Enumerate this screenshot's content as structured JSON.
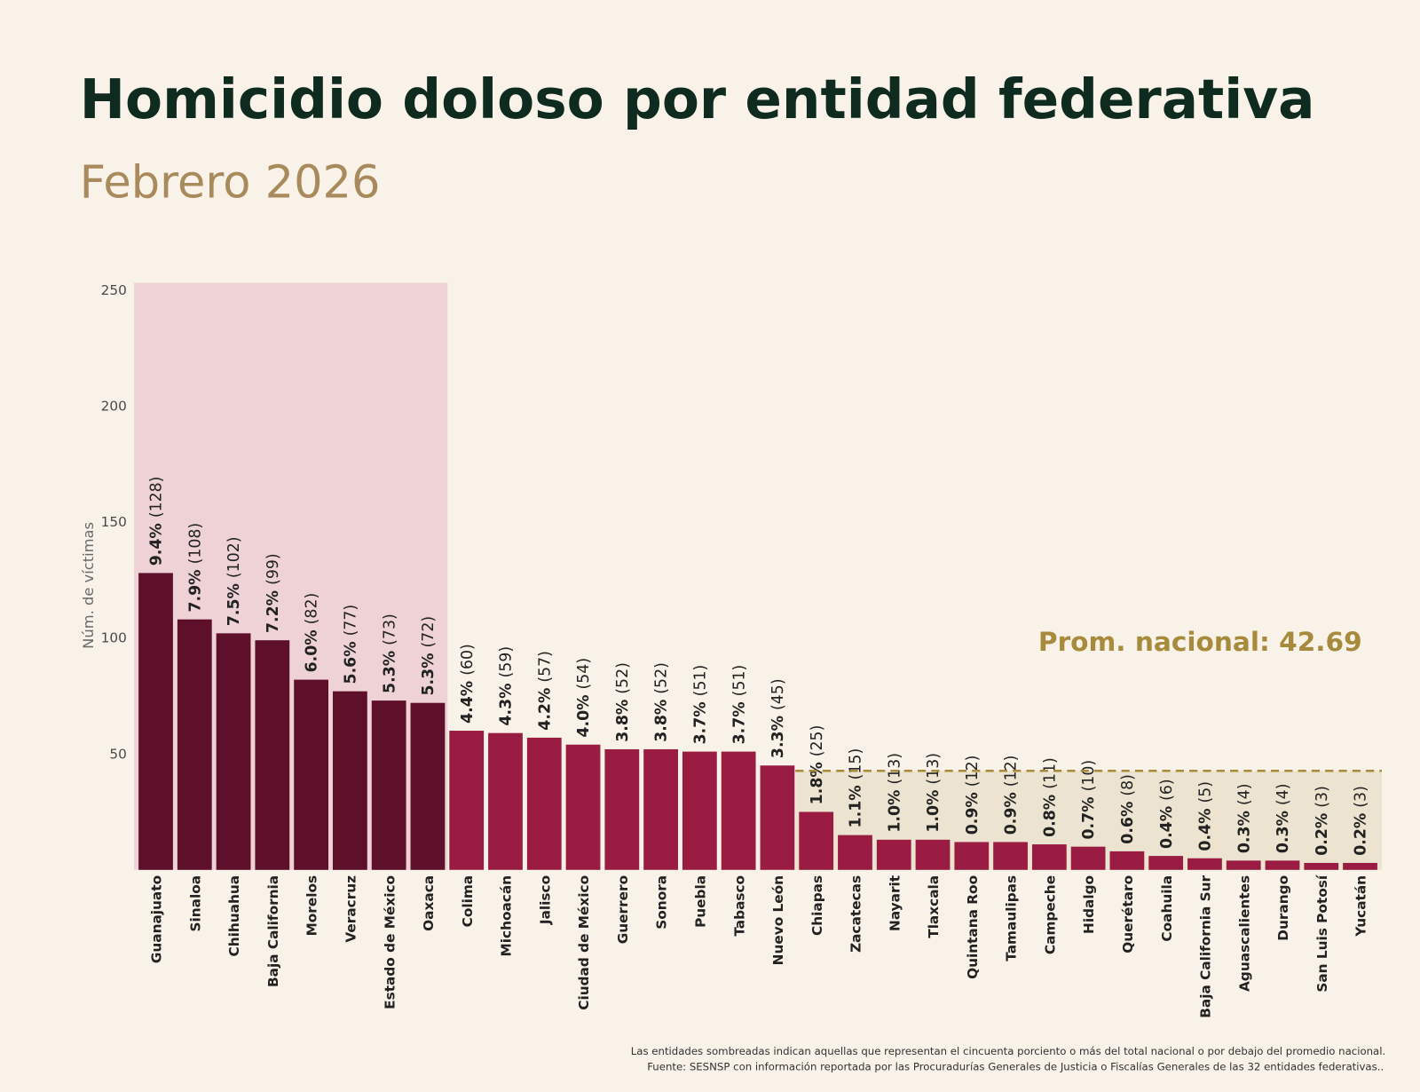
{
  "chart_data": {
    "type": "bar",
    "title": "Homicidio doloso por entidad federativa",
    "subtitle": "Febrero 2026",
    "ylabel": "Núm. de víctimas",
    "xlabel": "",
    "ylim": [
      0,
      250
    ],
    "yticks": [
      50,
      100,
      150,
      200,
      250
    ],
    "grid": false,
    "categories": [
      "Guanajuato",
      "Sinaloa",
      "Chihuahua",
      "Baja California",
      "Morelos",
      "Veracruz",
      "Estado de México",
      "Oaxaca",
      "Colima",
      "Michoacán",
      "Jalisco",
      "Ciudad de México",
      "Guerrero",
      "Sonora",
      "Puebla",
      "Tabasco",
      "Nuevo León",
      "Chiapas",
      "Zacatecas",
      "Nayarit",
      "Tlaxcala",
      "Quintana Roo",
      "Tamaulipas",
      "Campeche",
      "Hidalgo",
      "Querétaro",
      "Coahuila",
      "Baja California Sur",
      "Aguascalientes",
      "Durango",
      "San Luis Potosí",
      "Yucatán"
    ],
    "values": [
      128,
      108,
      102,
      99,
      82,
      77,
      73,
      72,
      60,
      59,
      57,
      54,
      52,
      52,
      51,
      51,
      45,
      25,
      15,
      13,
      13,
      12,
      12,
      11,
      10,
      8,
      6,
      5,
      4,
      4,
      3,
      3
    ],
    "percent_labels": [
      "9.4%",
      "7.9%",
      "7.5%",
      "7.2%",
      "6.0%",
      "5.6%",
      "5.3%",
      "5.3%",
      "4.4%",
      "4.3%",
      "4.2%",
      "4.0%",
      "3.8%",
      "3.8%",
      "3.7%",
      "3.7%",
      "3.3%",
      "1.8%",
      "1.1%",
      "1.0%",
      "1.0%",
      "0.9%",
      "0.9%",
      "0.8%",
      "0.7%",
      "0.6%",
      "0.4%",
      "0.4%",
      "0.3%",
      "0.3%",
      "0.2%",
      "0.2%"
    ],
    "value_labels": [
      "(128)",
      "(108)",
      "(102)",
      "(99)",
      "(82)",
      "(77)",
      "(73)",
      "(72)",
      "(60)",
      "(59)",
      "(57)",
      "(54)",
      "(52)",
      "(52)",
      "(51)",
      "(51)",
      "(45)",
      "(25)",
      "(15)",
      "(13)",
      "(13)",
      "(12)",
      "(12)",
      "(11)",
      "(10)",
      "(8)",
      "(6)",
      "(5)",
      "(4)",
      "(4)",
      "(3)",
      "(3)"
    ],
    "highlight_top_count": 8,
    "highlight_below_average_from": 17,
    "average": 42.69,
    "average_label": "Prom. nacional: 42.69",
    "colors": {
      "top_bars": "#5e0f29",
      "other_bars": "#9a1c42",
      "top_shading": "#efd2d6",
      "below_avg_shading": "#ece4d0",
      "average_line": "#a88a3c"
    }
  },
  "footnote": {
    "line1": "Las entidades sombreadas indican aquellas que representan el cincuenta porciento o más del total nacional o por debajo del promedio nacional.",
    "line2": "Fuente: SESNSP con información reportada por las Procuradurías Generales de Justicia o Fiscalías Generales de las 32 entidades federativas.."
  }
}
